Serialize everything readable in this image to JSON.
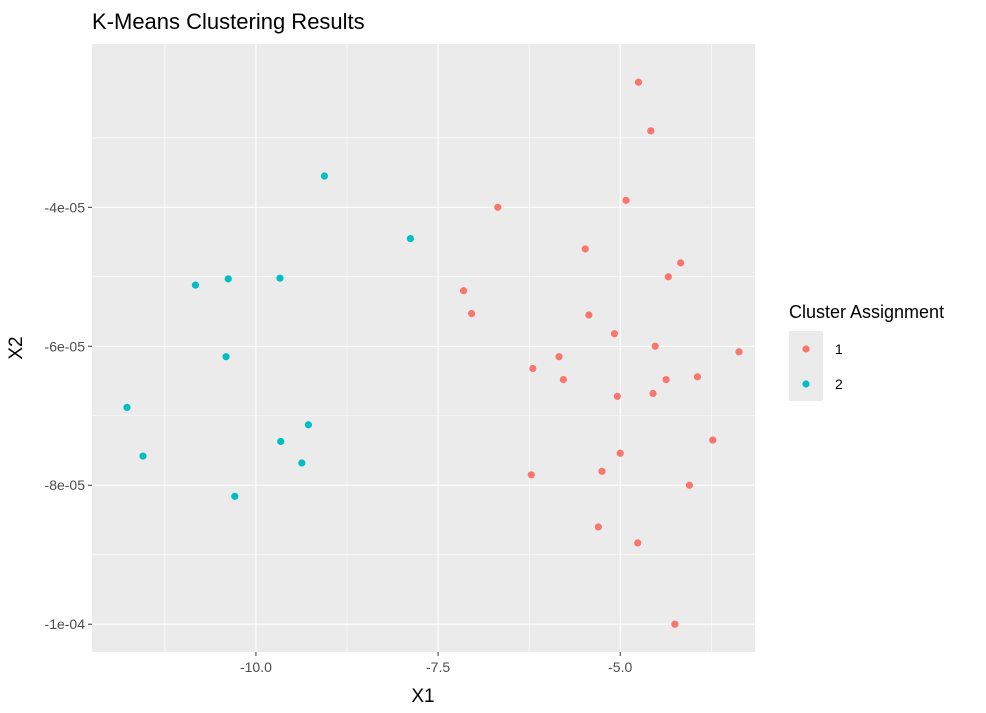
{
  "chart_data": {
    "type": "scatter",
    "title": "K-Means Clustering Results",
    "xlabel": "X1",
    "ylabel": "X2",
    "xlim": [
      -12.25,
      -3.15
    ],
    "ylim": [
      -0.000104,
      -1.65e-05
    ],
    "x_ticks": [
      {
        "value": -10.0,
        "label": "-10.0"
      },
      {
        "value": -7.5,
        "label": "-7.5"
      },
      {
        "value": -5.0,
        "label": "-5.0"
      }
    ],
    "y_ticks": [
      {
        "value": -4e-05,
        "label": "-4e-05"
      },
      {
        "value": -6e-05,
        "label": "-6e-05"
      },
      {
        "value": -8e-05,
        "label": "-8e-05"
      },
      {
        "value": -0.0001,
        "label": "-1e-04"
      }
    ],
    "grid": true,
    "legend": {
      "title": "Cluster Assignment",
      "position": "right",
      "entries": [
        {
          "label": "1",
          "color": "#F8766D"
        },
        {
          "label": "2",
          "color": "#00BFC4"
        }
      ]
    },
    "series": [
      {
        "cluster": "1",
        "color": "#F8766D",
        "points": [
          {
            "x": -4.75,
            "y": -2.2e-05
          },
          {
            "x": -4.58,
            "y": -2.9e-05
          },
          {
            "x": -4.92,
            "y": -3.9e-05
          },
          {
            "x": -6.68,
            "y": -4e-05
          },
          {
            "x": -5.48,
            "y": -4.6e-05
          },
          {
            "x": -4.17,
            "y": -4.8e-05
          },
          {
            "x": -4.34,
            "y": -5e-05
          },
          {
            "x": -7.15,
            "y": -5.2e-05
          },
          {
            "x": -7.04,
            "y": -5.53e-05
          },
          {
            "x": -5.43,
            "y": -5.55e-05
          },
          {
            "x": -5.08,
            "y": -5.82e-05
          },
          {
            "x": -4.52,
            "y": -6e-05
          },
          {
            "x": -3.37,
            "y": -6.08e-05
          },
          {
            "x": -5.84,
            "y": -6.15e-05
          },
          {
            "x": -6.2,
            "y": -6.32e-05
          },
          {
            "x": -5.78,
            "y": -6.48e-05
          },
          {
            "x": -4.37,
            "y": -6.48e-05
          },
          {
            "x": -3.94,
            "y": -6.44e-05
          },
          {
            "x": -5.04,
            "y": -6.72e-05
          },
          {
            "x": -4.55,
            "y": -6.68e-05
          },
          {
            "x": -3.73,
            "y": -7.35e-05
          },
          {
            "x": -5.0,
            "y": -7.54e-05
          },
          {
            "x": -5.25,
            "y": -7.8e-05
          },
          {
            "x": -6.22,
            "y": -7.85e-05
          },
          {
            "x": -4.05,
            "y": -8e-05
          },
          {
            "x": -5.3,
            "y": -8.6e-05
          },
          {
            "x": -4.76,
            "y": -8.83e-05
          },
          {
            "x": -4.25,
            "y": -0.0001
          }
        ]
      },
      {
        "cluster": "2",
        "color": "#00BFC4",
        "points": [
          {
            "x": -9.06,
            "y": -3.55e-05
          },
          {
            "x": -7.88,
            "y": -4.45e-05
          },
          {
            "x": -10.83,
            "y": -5.12e-05
          },
          {
            "x": -10.38,
            "y": -5.03e-05
          },
          {
            "x": -9.67,
            "y": -5.02e-05
          },
          {
            "x": -10.41,
            "y": -6.15e-05
          },
          {
            "x": -11.77,
            "y": -6.88e-05
          },
          {
            "x": -9.28,
            "y": -7.13e-05
          },
          {
            "x": -9.66,
            "y": -7.37e-05
          },
          {
            "x": -11.55,
            "y": -7.58e-05
          },
          {
            "x": -9.37,
            "y": -7.68e-05
          },
          {
            "x": -10.29,
            "y": -8.16e-05
          }
        ]
      }
    ]
  }
}
